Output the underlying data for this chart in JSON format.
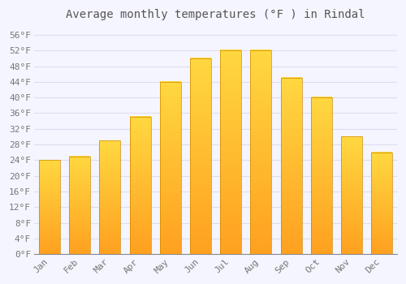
{
  "title": "Average monthly temperatures (°F ) in Rindal",
  "months": [
    "Jan",
    "Feb",
    "Mar",
    "Apr",
    "May",
    "Jun",
    "Jul",
    "Aug",
    "Sep",
    "Oct",
    "Nov",
    "Dec"
  ],
  "values": [
    24,
    25,
    29,
    35,
    44,
    50,
    52,
    52,
    45,
    40,
    30,
    26
  ],
  "bar_color_center": "#FFD000",
  "bar_color_edge": "#FFA000",
  "bar_edge_color": "#CC8800",
  "background_color": "#F5F5FF",
  "grid_color": "#DDDDEE",
  "title_color": "#555555",
  "label_color": "#777777",
  "ylim": [
    0,
    58
  ],
  "yticks": [
    0,
    4,
    8,
    12,
    16,
    20,
    24,
    28,
    32,
    36,
    40,
    44,
    48,
    52,
    56
  ],
  "title_fontsize": 10,
  "tick_fontsize": 8,
  "font_family": "monospace",
  "bar_width": 0.7
}
